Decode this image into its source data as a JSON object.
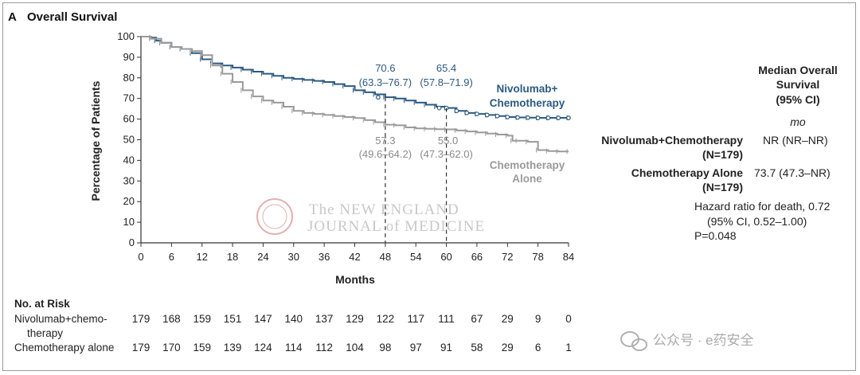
{
  "panel": {
    "letter": "A",
    "title": "Overall Survival"
  },
  "chart_data": {
    "type": "line",
    "title": "Overall Survival",
    "xlabel": "Months",
    "ylabel": "Percentage of Patients",
    "xlim": [
      0,
      84
    ],
    "ylim": [
      0,
      100
    ],
    "xticks": [
      0,
      6,
      12,
      18,
      24,
      30,
      36,
      42,
      48,
      54,
      60,
      66,
      72,
      78,
      84
    ],
    "yticks": [
      0,
      10,
      20,
      30,
      40,
      50,
      60,
      70,
      80,
      90,
      100
    ],
    "series": [
      {
        "name": "Nivolumab+Chemotherapy",
        "label_lines": [
          "Nivolumab+",
          "Chemotherapy"
        ],
        "color": "#2d5a80",
        "x": [
          0,
          2,
          3,
          4,
          6,
          8,
          10,
          12,
          14,
          16,
          18,
          20,
          22,
          24,
          26,
          28,
          30,
          32,
          34,
          36,
          38,
          40,
          42,
          44,
          46,
          48,
          50,
          52,
          54,
          56,
          58,
          60,
          62,
          64,
          66,
          68,
          70,
          72,
          74,
          76,
          78,
          80,
          82,
          84
        ],
        "y": [
          100,
          99.5,
          98,
          97,
          95,
          94,
          92,
          89,
          87,
          86,
          85,
          84,
          83,
          82,
          81,
          80,
          79.5,
          79,
          78.5,
          78,
          77,
          76,
          74,
          73,
          72,
          70.6,
          70,
          69,
          68,
          67,
          66,
          65.4,
          64,
          63,
          62.5,
          62,
          61.5,
          61,
          60.8,
          60.7,
          60.6,
          60.6,
          60.6,
          60.6
        ],
        "annotations": [
          {
            "x": 48,
            "value": "70.6",
            "ci": "(63.3–76.7)"
          },
          {
            "x": 60,
            "value": "65.4",
            "ci": "(57.8–71.9)"
          }
        ]
      },
      {
        "name": "Chemotherapy Alone",
        "label_lines": [
          "Chemotherapy",
          "Alone"
        ],
        "color": "#9a9a9a",
        "x": [
          0,
          2,
          4,
          6,
          8,
          10,
          12,
          14,
          16,
          18,
          20,
          22,
          24,
          26,
          28,
          30,
          32,
          34,
          36,
          38,
          40,
          42,
          44,
          46,
          48,
          50,
          52,
          54,
          56,
          58,
          60,
          62,
          64,
          66,
          68,
          70,
          72,
          73,
          74,
          76,
          78,
          80,
          82,
          84
        ],
        "y": [
          100,
          99,
          97,
          95,
          94,
          93,
          91,
          86,
          82,
          78,
          74,
          71,
          69,
          68,
          66,
          64,
          63,
          62.5,
          62,
          61.5,
          61,
          60.5,
          59.5,
          58.5,
          57.3,
          57,
          56,
          55.5,
          55.3,
          55.1,
          55,
          54.5,
          54,
          53.5,
          53,
          52.5,
          52,
          49.5,
          49.5,
          49,
          45,
          44.5,
          44.3,
          44.3
        ],
        "annotations": [
          {
            "x": 48,
            "value": "57.3",
            "ci": "(49.6–64.2)"
          },
          {
            "x": 60,
            "value": "55.0",
            "ci": "(47.3–62.0)"
          }
        ]
      }
    ]
  },
  "median": {
    "header_lines": [
      "Median Overall",
      "Survival",
      "(95% CI)"
    ],
    "unit": "mo",
    "rows": [
      {
        "label_lines": [
          "Nivolumab+Chemotherapy",
          "(N=179)"
        ],
        "value": "NR (NR–NR)"
      },
      {
        "label_lines": [
          "Chemotherapy Alone",
          "(N=179)"
        ],
        "value": "73.7 (47.3–NR)"
      }
    ],
    "hr_lines": [
      "Hazard ratio for death, 0.72",
      "(95% CI, 0.52–1.00)",
      "P=0.048"
    ]
  },
  "risk_table": {
    "title": "No. at Risk",
    "rows": [
      {
        "label_lines": [
          "Nivolumab+chemo-",
          "therapy"
        ],
        "values": [
          "179",
          "168",
          "159",
          "151",
          "147",
          "140",
          "137",
          "129",
          "122",
          "117",
          "111",
          "67",
          "29",
          "9",
          "0"
        ]
      },
      {
        "label_lines": [
          "Chemotherapy alone"
        ],
        "values": [
          "179",
          "170",
          "159",
          "139",
          "124",
          "114",
          "112",
          "104",
          "98",
          "97",
          "91",
          "58",
          "29",
          "6",
          "1"
        ]
      }
    ]
  },
  "watermark": {
    "line1": "The NEW ENGLAND",
    "line2": "JOURNAL of MEDICINE"
  },
  "wechat_mark": "公众号 · e药安全"
}
